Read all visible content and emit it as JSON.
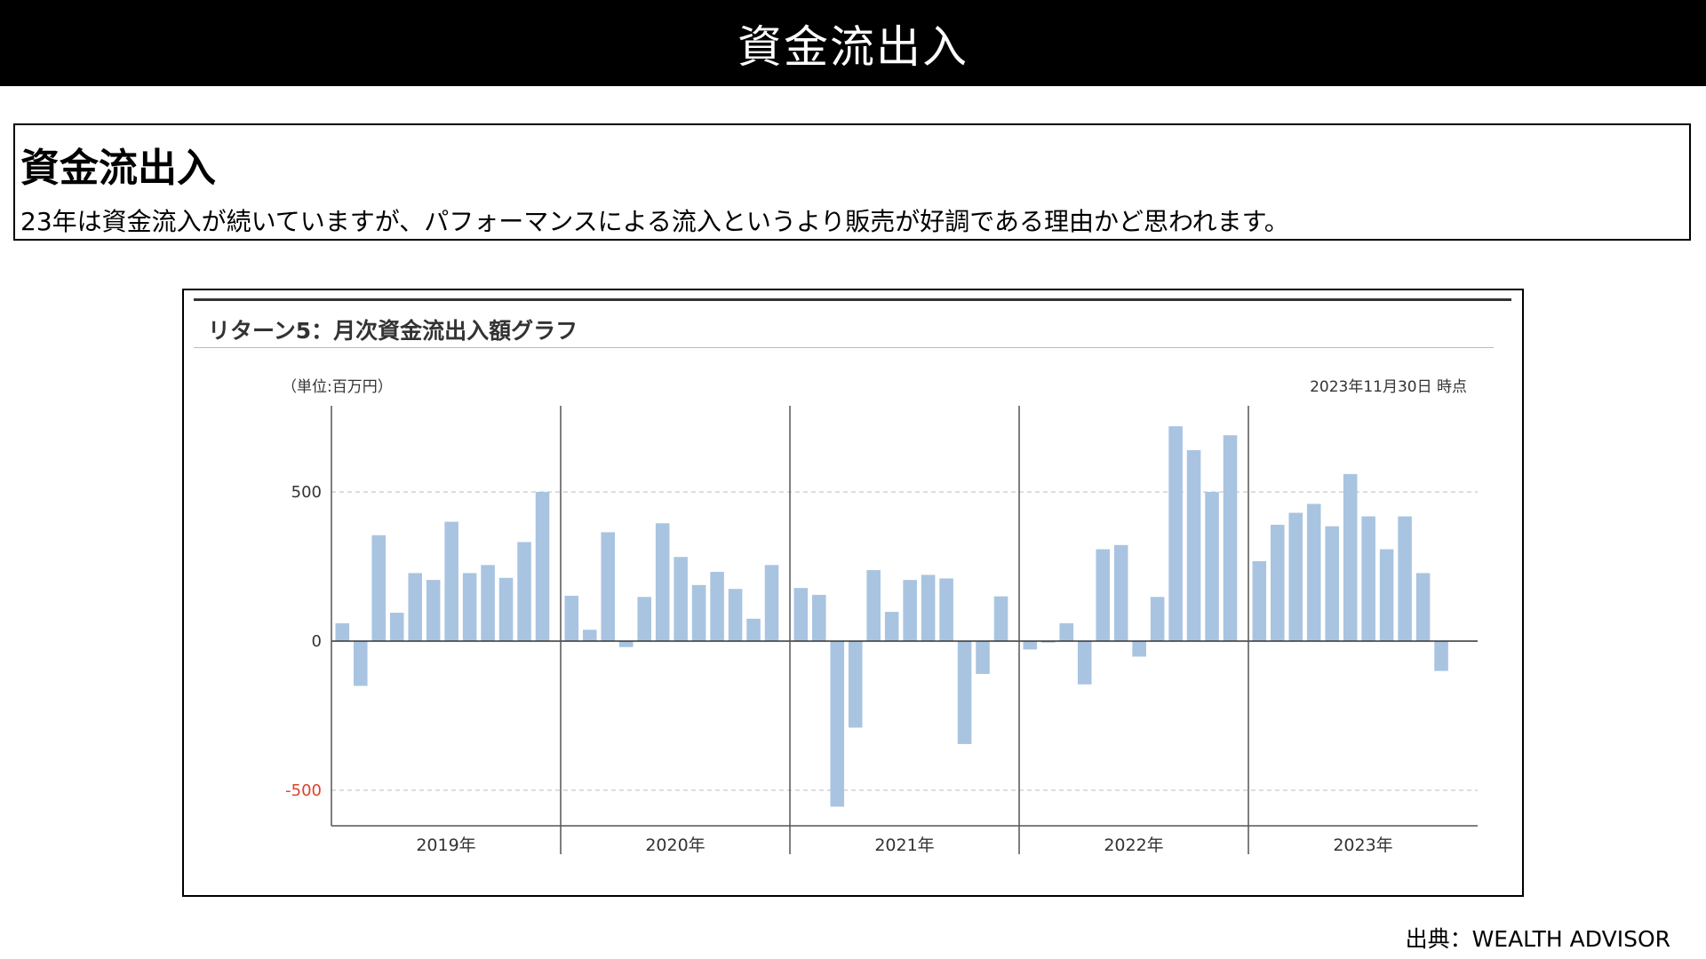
{
  "banner": {
    "title": "資金流出入"
  },
  "summary": {
    "heading": "資金流出入",
    "text": "23年は資金流入が続いていますが、パフォーマンスによる流入というより販売が好調である理由かど思われます。"
  },
  "chart_data": {
    "type": "bar",
    "title": "リターン5：月次資金流出入額グラフ",
    "unit_label": "（単位:百万円）",
    "as_of": "2023年11月30日 時点",
    "yticks": [
      {
        "value": 500,
        "label": "500",
        "color": "#333333"
      },
      {
        "value": 0,
        "label": "0",
        "color": "#333333"
      },
      {
        "value": -500,
        "label": "-500",
        "color": "#e0402a"
      }
    ],
    "ylim": [
      -615,
      790
    ],
    "grid": true,
    "bar_color": "#a9c4e0",
    "years": [
      "2019年",
      "2020年",
      "2021年",
      "2022年",
      "2023年"
    ],
    "series": [
      {
        "values": [
          60,
          -150,
          355,
          95,
          228,
          205,
          400,
          228,
          255,
          212,
          332,
          500,
          152,
          38,
          365,
          -20,
          148,
          395,
          282,
          188,
          232,
          175,
          75,
          255,
          178,
          155,
          -555,
          -290,
          238,
          98,
          205,
          222,
          210,
          -345,
          -110,
          150,
          -28,
          -5,
          60,
          -145,
          308,
          322,
          -52,
          148,
          720,
          640,
          500,
          690,
          268,
          390,
          430,
          460,
          385,
          560,
          418,
          308,
          418,
          228,
          -100
        ]
      }
    ]
  },
  "source": {
    "text": "出典：WEALTH ADVISOR"
  }
}
